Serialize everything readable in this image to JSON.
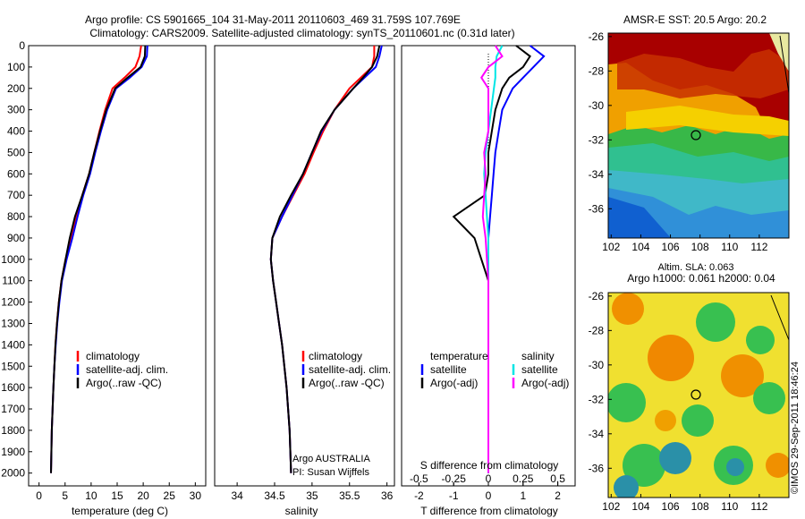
{
  "header": {
    "line1": "Argo profile: CS 5901665_104 31-May-2011 20110603_469 31.759S 107.769E",
    "line2": "Climatology: CARS2009. Satellite-adjusted climatology: synTS_20110601.nc (0.31d later)"
  },
  "colors": {
    "climatology": "#ff0000",
    "satellite": "#0000ff",
    "argo": "#000000",
    "sat_salinity": "#00e5e5",
    "argo_salinity": "#ff00ff"
  },
  "depth_ticks": [
    "0",
    "100",
    "200",
    "300",
    "400",
    "500",
    "600",
    "700",
    "800",
    "900",
    "1000",
    "1100",
    "1200",
    "1300",
    "1400",
    "1500",
    "1600",
    "1700",
    "1800",
    "1900",
    "2000"
  ],
  "temp_ticks": [
    "0",
    "5",
    "10",
    "15",
    "20",
    "25",
    "30"
  ],
  "sal_ticks": [
    "34",
    "34.5",
    "35",
    "35.5",
    "36"
  ],
  "diff_top_ticks": [
    "-0.5",
    "-0.25",
    "0",
    "0.25",
    "0.5"
  ],
  "diff_bottom_ticks": [
    "-2",
    "-1",
    "0",
    "1",
    "2"
  ],
  "legend_temp": [
    "climatology",
    "satellite-adj. clim.",
    "Argo(..raw -QC)"
  ],
  "legend_sal": [
    "climatology",
    "satellite-adj. clim.",
    "Argo(..raw -QC)"
  ],
  "legend_diff": {
    "temp_header": "temperature",
    "sal_header": "salinity",
    "sat": "satellite",
    "argo": "Argo(-adj)"
  },
  "annotation": {
    "line1": "Argo AUSTRALIA",
    "line2": "PI: Susan Wijffels"
  },
  "map_top": {
    "title": "AMSR-E SST: 20.5 Argo: 20.2"
  },
  "map_bottom": {
    "title1": "Altim. SLA: 0.063",
    "title2": "Argo h1000: 0.061 h2000: 0.04"
  },
  "map_x_ticks": [
    "102",
    "104",
    "106",
    "108",
    "110",
    "112"
  ],
  "map_y_ticks": [
    "-26",
    "-28",
    "-30",
    "-32",
    "-34",
    "-36"
  ],
  "footer": "©IMOS 29-Sep-2011 18:46:24",
  "chart_data": [
    {
      "type": "line",
      "xlabel": "temperature (deg C)",
      "ylabel": "",
      "xlim": [
        -2,
        32
      ],
      "ylim": [
        2060,
        0
      ],
      "legend": "lower-left",
      "series": [
        {
          "name": "climatology",
          "x": [
            19.6,
            19.3,
            18.5,
            16.4,
            14.1,
            12.7,
            11.6,
            10.6,
            9.6,
            8.3,
            7.2,
            6.2,
            5.1,
            4.3,
            3.8,
            3.45,
            3.15,
            2.95,
            2.75,
            2.6,
            2.45,
            2.3
          ],
          "y": [
            0,
            50,
            100,
            150,
            200,
            300,
            400,
            500,
            600,
            700,
            800,
            900,
            1000,
            1100,
            1200,
            1300,
            1400,
            1500,
            1600,
            1700,
            1800,
            2000
          ]
        },
        {
          "name": "satellite-adj. clim.",
          "x": [
            20.8,
            20.7,
            19.7,
            17.4,
            14.8,
            13.1,
            11.9,
            10.8,
            9.8,
            8.5,
            7.4,
            6.4,
            5.3,
            4.4,
            3.9,
            3.5,
            3.2,
            2.95,
            2.75,
            2.6,
            2.45,
            2.3
          ],
          "y": [
            0,
            50,
            100,
            150,
            200,
            300,
            400,
            500,
            600,
            700,
            800,
            900,
            1000,
            1100,
            1200,
            1300,
            1400,
            1500,
            1600,
            1700,
            1800,
            2000
          ]
        },
        {
          "name": "Argo(..raw -QC)",
          "x": [
            20.4,
            20.3,
            19.5,
            17.0,
            14.6,
            12.9,
            11.7,
            10.6,
            9.6,
            8.3,
            6.9,
            5.9,
            5.1,
            4.3,
            3.8,
            3.45,
            3.15,
            2.95,
            2.75,
            2.6,
            2.45,
            2.3
          ],
          "y": [
            0,
            50,
            100,
            150,
            200,
            300,
            400,
            500,
            600,
            700,
            800,
            900,
            1000,
            1100,
            1200,
            1300,
            1400,
            1500,
            1600,
            1700,
            1800,
            2000
          ]
        }
      ]
    },
    {
      "type": "line",
      "xlabel": "salinity",
      "xlim": [
        33.7,
        36.1
      ],
      "ylim": [
        2060,
        0
      ],
      "legend": "lower-left",
      "series": [
        {
          "name": "climatology",
          "x": [
            35.83,
            35.83,
            35.8,
            35.65,
            35.5,
            35.3,
            35.15,
            35.02,
            34.9,
            34.75,
            34.6,
            34.47,
            34.45,
            34.48,
            34.52,
            34.56,
            34.6,
            34.63,
            34.66,
            34.68,
            34.7,
            34.72
          ],
          "y": [
            0,
            50,
            100,
            150,
            200,
            300,
            400,
            500,
            600,
            700,
            800,
            900,
            1000,
            1100,
            1200,
            1300,
            1400,
            1500,
            1600,
            1700,
            1800,
            2000
          ]
        },
        {
          "name": "satellite-adj. clim.",
          "x": [
            35.93,
            35.9,
            35.85,
            35.7,
            35.55,
            35.3,
            35.13,
            35.0,
            34.88,
            34.74,
            34.6,
            34.47,
            34.45,
            34.48,
            34.52,
            34.56,
            34.6,
            34.63,
            34.66,
            34.68,
            34.7,
            34.72
          ],
          "y": [
            0,
            50,
            100,
            150,
            200,
            300,
            400,
            500,
            600,
            700,
            800,
            900,
            1000,
            1100,
            1200,
            1300,
            1400,
            1500,
            1600,
            1700,
            1800,
            2000
          ]
        },
        {
          "name": "Argo(..raw -QC)",
          "x": [
            35.9,
            35.87,
            35.8,
            35.68,
            35.55,
            35.3,
            35.12,
            35.0,
            34.88,
            34.72,
            34.57,
            34.47,
            34.45,
            34.48,
            34.52,
            34.56,
            34.6,
            34.63,
            34.66,
            34.68,
            34.7,
            34.72
          ],
          "y": [
            0,
            50,
            100,
            150,
            200,
            300,
            400,
            500,
            600,
            700,
            800,
            900,
            1000,
            1100,
            1200,
            1300,
            1400,
            1500,
            1600,
            1700,
            1800,
            2000
          ]
        }
      ]
    },
    {
      "type": "line",
      "xlabel": "T difference from climatology",
      "x2label": "S difference from climatology",
      "xlim": [
        -2.5,
        2.5
      ],
      "x2lim": [
        -0.625,
        0.625
      ],
      "ylim": [
        2060,
        0
      ],
      "legend": "lower-center",
      "series": [
        {
          "name": "temperature satellite",
          "axis": "T",
          "x": [
            1.2,
            1.6,
            1.3,
            1.0,
            0.7,
            0.4,
            0.3,
            0.2,
            0.15,
            0.1,
            0.05,
            0.0,
            0.0,
            0.0,
            0.0,
            0.0,
            0.0,
            0.0,
            0.0,
            0.0,
            0.0,
            0.0
          ],
          "y": [
            0,
            50,
            100,
            150,
            200,
            300,
            400,
            500,
            600,
            700,
            800,
            900,
            1000,
            1100,
            1200,
            1300,
            1400,
            1500,
            1600,
            1700,
            1800,
            2000
          ]
        },
        {
          "name": "temperature Argo(-adj)",
          "axis": "T",
          "x": [
            0.8,
            1.2,
            1.0,
            0.6,
            0.4,
            0.2,
            0.1,
            0.0,
            0.0,
            -0.1,
            -1.0,
            -0.4,
            -0.2,
            0.0,
            0.0,
            0.0,
            0.0,
            0.0,
            0.0,
            0.0,
            0.0,
            0.0
          ],
          "y": [
            0,
            50,
            100,
            150,
            200,
            300,
            400,
            500,
            600,
            700,
            800,
            900,
            1000,
            1100,
            1200,
            1300,
            1400,
            1500,
            1600,
            1700,
            1800,
            2000
          ]
        },
        {
          "name": "salinity satellite",
          "axis": "S",
          "x": [
            0.1,
            0.06,
            0.05,
            0.05,
            0.04,
            0.02,
            0.0,
            -0.02,
            -0.03,
            -0.02,
            -0.01,
            0.0,
            0.0,
            0.0,
            0.0,
            0.0,
            0.0,
            0.0,
            0.0,
            0.0,
            0.0,
            0.0
          ],
          "y": [
            0,
            50,
            100,
            150,
            200,
            300,
            400,
            500,
            600,
            700,
            800,
            900,
            1000,
            1100,
            1200,
            1300,
            1400,
            1500,
            1600,
            1700,
            1800,
            2000
          ]
        },
        {
          "name": "salinity Argo(-adj)",
          "axis": "S",
          "x": [
            0.05,
            0.1,
            0.0,
            -0.05,
            0.0,
            0.0,
            0.0,
            -0.03,
            -0.02,
            -0.03,
            -0.04,
            -0.02,
            -0.01,
            0.0,
            0.0,
            0.0,
            0.0,
            0.0,
            0.0,
            0.0,
            0.0,
            0.0
          ],
          "y": [
            0,
            50,
            100,
            150,
            200,
            300,
            400,
            500,
            600,
            700,
            800,
            900,
            1000,
            1100,
            1200,
            1300,
            1400,
            1500,
            1600,
            1700,
            1800,
            2000
          ]
        }
      ]
    },
    {
      "type": "heatmap",
      "title": "AMSR-E SST: 20.5 Argo: 20.2",
      "xlim": [
        101.8,
        114
      ],
      "ylim": [
        -37.7,
        -25.8
      ],
      "argo_position": [
        107.769,
        -31.759
      ],
      "colors": {
        "warm": "#a80000",
        "mid": "#f5d000",
        "cool": "#30c060",
        "cold": "#1060d0"
      }
    },
    {
      "type": "heatmap",
      "title": "Altim. SLA: 0.063 / Argo h1000: 0.061 h2000: 0.04",
      "xlim": [
        101.8,
        114
      ],
      "ylim": [
        -37.7,
        -25.8
      ],
      "argo_position": [
        107.769,
        -31.759
      ],
      "colors": {
        "high": "#f08000",
        "mid": "#f0e030",
        "low": "#30c050",
        "lowest": "#2090c0"
      }
    }
  ]
}
